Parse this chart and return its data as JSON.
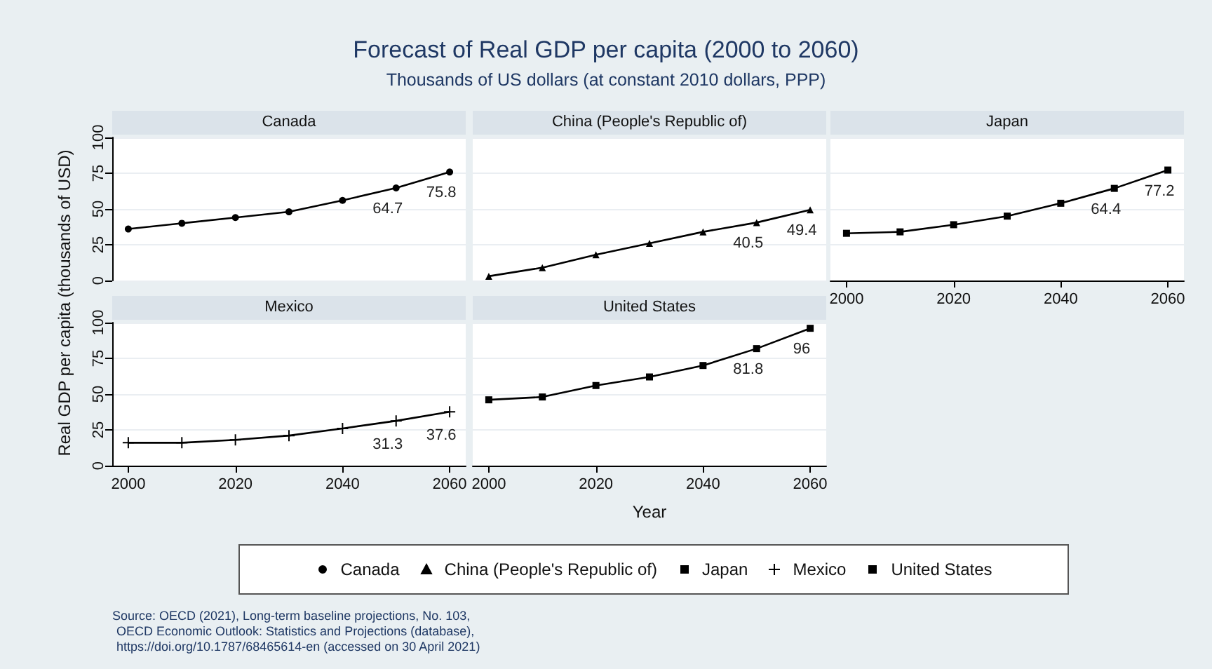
{
  "chart_data": [
    {
      "type": "other",
      "title": "Forecast of Real GDP per capita (2000 to 2060)",
      "subtitle": "Thousands of US dollars (at constant 2010 dollars, PPP)",
      "annotations": [
        "Source: OECD (2021), Long-term baseline projections, No. 103,",
        "OECD Economic Outlook: Statistics and Projections (database),",
        "https://doi.org/10.1787/68465614-en (accessed on 30 April 2021)"
      ]
    },
    {
      "type": "line",
      "title": "Canada",
      "x": [
        2000,
        2010,
        2020,
        2030,
        2040,
        2050,
        2060
      ],
      "xlim": [
        1997,
        2063
      ],
      "xticks": [
        2000,
        2020,
        2040,
        2060
      ],
      "ylim": [
        0,
        100
      ],
      "yticks": [
        0,
        25,
        50,
        75,
        100
      ],
      "grid": "y",
      "tick_labels": "y",
      "legend": "bottom",
      "marker": "circle",
      "series": [
        {
          "name": "Canada",
          "color": "#000000",
          "values": [
            36,
            40,
            44,
            48,
            56,
            64.7,
            75.8
          ],
          "value_labels": [
            null,
            null,
            null,
            null,
            null,
            "64.7",
            "75.8"
          ]
        }
      ]
    },
    {
      "type": "line",
      "title": "China (People's Republic of)",
      "x": [
        2000,
        2010,
        2020,
        2030,
        2040,
        2050,
        2060
      ],
      "xlim": [
        1997,
        2063
      ],
      "xticks": [
        2000,
        2020,
        2040,
        2060
      ],
      "ylim": [
        0,
        100
      ],
      "yticks": [
        0,
        25,
        50,
        75,
        100
      ],
      "grid": "y",
      "tick_labels": false,
      "legend": "bottom",
      "marker": "triangle",
      "series": [
        {
          "name": "China (People's Republic of)",
          "color": "#000000",
          "values": [
            3,
            9,
            18,
            26,
            34,
            40.5,
            49.4
          ],
          "value_labels": [
            null,
            null,
            null,
            null,
            null,
            "40.5",
            "49.4"
          ]
        }
      ]
    },
    {
      "type": "line",
      "title": "Japan",
      "x": [
        2000,
        2010,
        2020,
        2030,
        2040,
        2050,
        2060
      ],
      "xlim": [
        1997,
        2063
      ],
      "xticks": [
        2000,
        2020,
        2040,
        2060
      ],
      "ylim": [
        0,
        100
      ],
      "yticks": [
        0,
        25,
        50,
        75,
        100
      ],
      "grid": "y",
      "tick_labels": "x",
      "legend": "bottom",
      "marker": "square",
      "series": [
        {
          "name": "Japan",
          "color": "#000000",
          "values": [
            33,
            34,
            39,
            45,
            54,
            64.4,
            77.2
          ],
          "value_labels": [
            null,
            null,
            null,
            null,
            null,
            "64.4",
            "77.2"
          ]
        }
      ]
    },
    {
      "type": "line",
      "title": "Mexico",
      "ylabel": "Real GDP per capita (thousands of USD)",
      "x": [
        2000,
        2010,
        2020,
        2030,
        2040,
        2050,
        2060
      ],
      "xlim": [
        1997,
        2063
      ],
      "xticks": [
        2000,
        2020,
        2040,
        2060
      ],
      "ylim": [
        0,
        100
      ],
      "yticks": [
        0,
        25,
        50,
        75,
        100
      ],
      "grid": "y",
      "legend": "bottom",
      "marker": "cross",
      "series": [
        {
          "name": "Mexico",
          "color": "#000000",
          "values": [
            16,
            16,
            18,
            21,
            26,
            31.3,
            37.6
          ],
          "value_labels": [
            null,
            null,
            null,
            null,
            null,
            "31.3",
            "37.6"
          ]
        }
      ]
    },
    {
      "type": "line",
      "title": "United States",
      "xlabel": "Year",
      "x": [
        2000,
        2010,
        2020,
        2030,
        2040,
        2050,
        2060
      ],
      "xlim": [
        1997,
        2063
      ],
      "xticks": [
        2000,
        2020,
        2040,
        2060
      ],
      "ylim": [
        0,
        100
      ],
      "yticks": [
        0,
        25,
        50,
        75,
        100
      ],
      "grid": "y",
      "tick_labels": "x",
      "legend": "bottom",
      "marker": "square",
      "series": [
        {
          "name": "United States",
          "color": "#000000",
          "values": [
            46,
            48,
            56,
            62,
            70,
            81.8,
            96
          ],
          "value_labels": [
            null,
            null,
            null,
            null,
            null,
            "81.8",
            "96"
          ]
        }
      ]
    }
  ]
}
